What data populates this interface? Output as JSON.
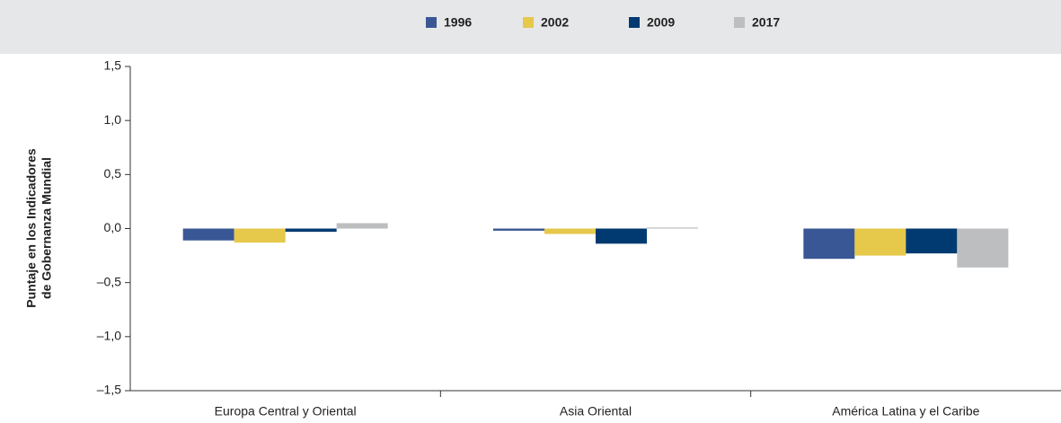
{
  "chart_data": {
    "type": "bar",
    "y_label": [
      "Puntaje en los Indicadores",
      "de Gobernanza Mundial"
    ],
    "categories": [
      "Europa Central y Oriental",
      "Asia Oriental",
      "América Latina y el Caribe"
    ],
    "series": [
      {
        "name": "1996",
        "color": "#3a5795",
        "values": [
          -0.11,
          -0.02,
          -0.28
        ]
      },
      {
        "name": "2002",
        "color": "#e6c84b",
        "values": [
          -0.13,
          -0.05,
          -0.25
        ]
      },
      {
        "name": "2009",
        "color": "#003a70",
        "values": [
          -0.03,
          -0.14,
          -0.23
        ]
      },
      {
        "name": "2017",
        "color": "#bcbec0",
        "values": [
          0.05,
          0.01,
          -0.36
        ]
      }
    ],
    "ylim": [
      -1.5,
      1.5
    ],
    "yticks": [
      {
        "value": -1.5,
        "label": "–1,5"
      },
      {
        "value": -1,
        "label": "–1,0"
      },
      {
        "value": -0.5,
        "label": "–0,5"
      },
      {
        "value": 0,
        "label": "0,0"
      },
      {
        "value": 0.5,
        "label": "0,5"
      },
      {
        "value": 1,
        "label": "1,0"
      },
      {
        "value": 1.5,
        "label": "1,5"
      }
    ],
    "legend": "top"
  }
}
